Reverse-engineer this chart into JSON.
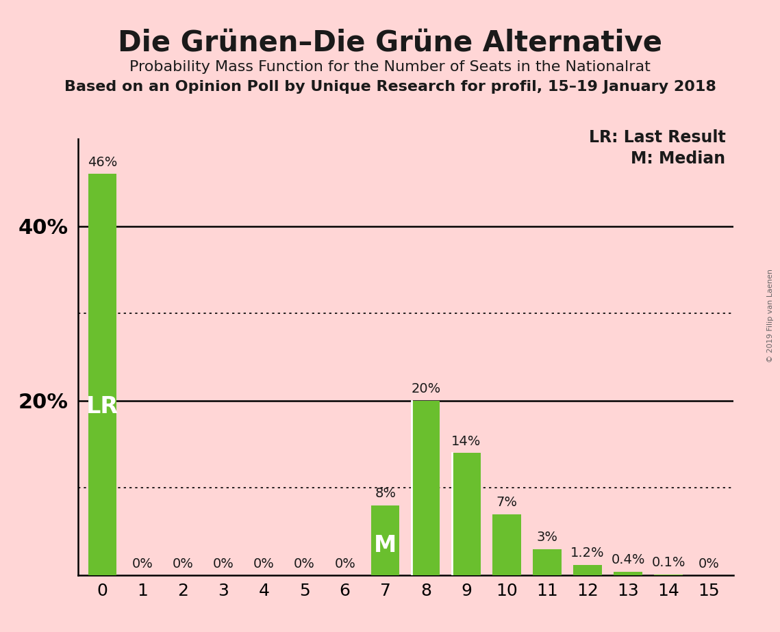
{
  "title": "Die Grünen–Die Grüne Alternative",
  "subtitle1": "Probability Mass Function for the Number of Seats in the Nationalrat",
  "subtitle2": "Based on an Opinion Poll by Unique Research for profil, 15–19 January 2018",
  "copyright": "© 2019 Filip van Laenen",
  "legend_lr": "LR: Last Result",
  "legend_m": "M: Median",
  "categories": [
    0,
    1,
    2,
    3,
    4,
    5,
    6,
    7,
    8,
    9,
    10,
    11,
    12,
    13,
    14,
    15
  ],
  "values": [
    46,
    0,
    0,
    0,
    0,
    0,
    0,
    8,
    20,
    14,
    7,
    3,
    1.2,
    0.4,
    0.1,
    0
  ],
  "bar_color": "#6abf2e",
  "background_color": "#ffd6d6",
  "text_color": "#1a1a1a",
  "bar_labels": [
    "46%",
    "0%",
    "0%",
    "0%",
    "0%",
    "0%",
    "0%",
    "8%",
    "20%",
    "14%",
    "7%",
    "3%",
    "1.2%",
    "0.4%",
    "0.1%",
    "0%"
  ],
  "lr_bar": 0,
  "median_bar": 7,
  "ylim": [
    0,
    50
  ],
  "solid_gridlines": [
    20,
    40
  ],
  "dotted_gridlines": [
    10,
    30
  ],
  "ytick_positions": [
    20,
    40
  ],
  "ytick_labels": [
    "20%",
    "40%"
  ],
  "title_fontsize": 30,
  "subtitle1_fontsize": 16,
  "subtitle2_fontsize": 16,
  "axis_tick_fontsize": 18,
  "ytick_fontsize": 22,
  "bar_label_fontsize": 14,
  "lr_label_fontsize": 24,
  "m_label_fontsize": 24,
  "legend_fontsize": 17
}
